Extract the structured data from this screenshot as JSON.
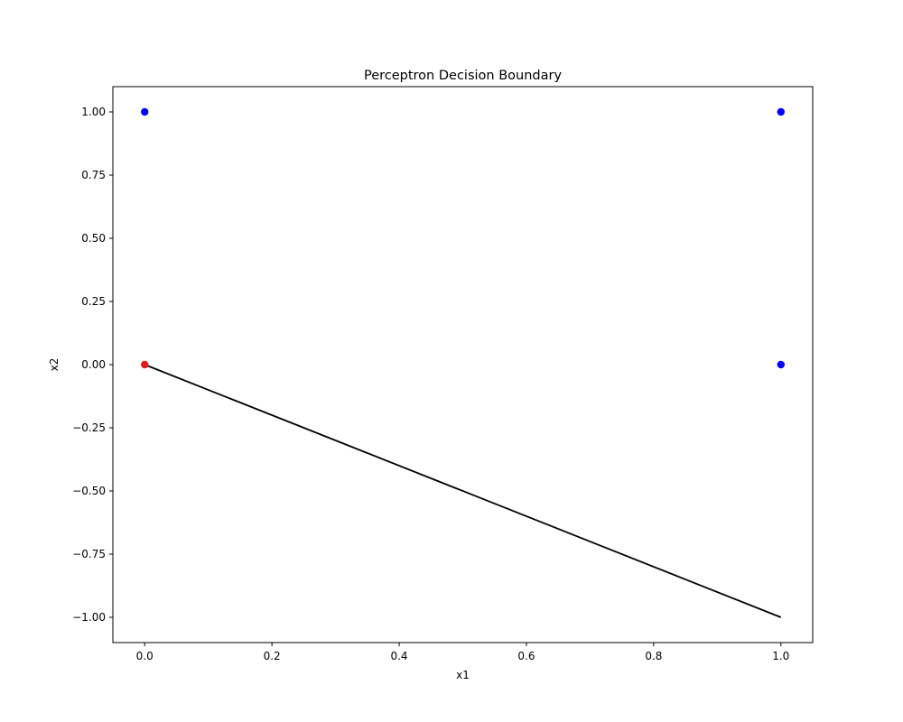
{
  "chart_data": {
    "type": "scatter",
    "title": "Perceptron Decision Boundary",
    "xlabel": "x1",
    "ylabel": "x2",
    "xlim": [
      -0.05,
      1.05
    ],
    "ylim": [
      -1.1,
      1.1
    ],
    "xticks": [
      0.0,
      0.2,
      0.4,
      0.6,
      0.8,
      1.0
    ],
    "xtick_labels": [
      "0.0",
      "0.2",
      "0.4",
      "0.6",
      "0.8",
      "1.0"
    ],
    "yticks": [
      1.0,
      0.75,
      0.5,
      0.25,
      0.0,
      -0.25,
      -0.5,
      -0.75,
      -1.0
    ],
    "ytick_labels": [
      "1.00",
      "0.75",
      "0.50",
      "0.25",
      "0.00",
      "−0.25",
      "−0.50",
      "−0.75",
      "−1.00"
    ],
    "grid": false,
    "points": [
      {
        "x": 0,
        "y": 0,
        "color": "#e41a1c"
      },
      {
        "x": 0,
        "y": 1,
        "color": "#0000ff"
      },
      {
        "x": 1,
        "y": 0,
        "color": "#0000ff"
      },
      {
        "x": 1,
        "y": 1,
        "color": "#0000ff"
      }
    ],
    "lines": [
      {
        "x": [
          0,
          1
        ],
        "y": [
          0,
          -1
        ],
        "color": "#000000"
      }
    ]
  }
}
